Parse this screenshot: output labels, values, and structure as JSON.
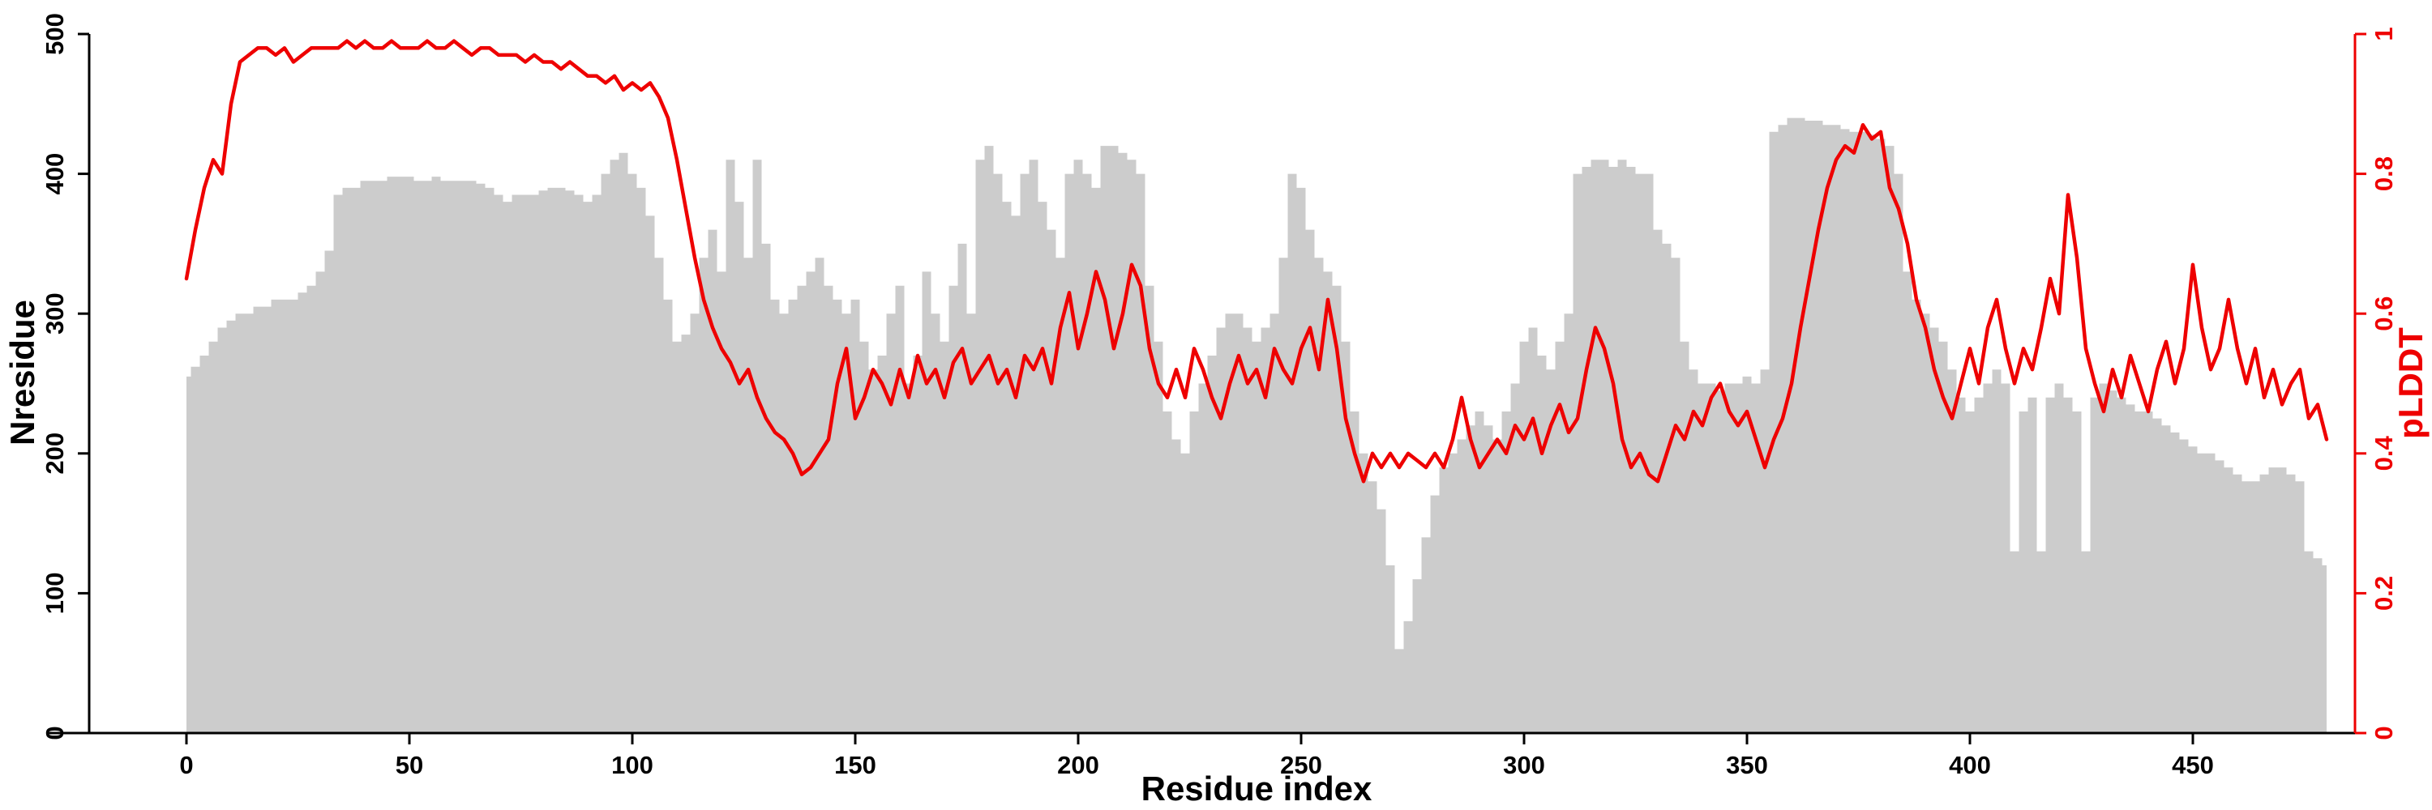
{
  "figure": {
    "background": "#ffffff"
  },
  "chart_data": {
    "type": "bar",
    "title": "",
    "xlabel": "Residue index",
    "ylabel": "Nresidue",
    "y2label": "pLDDT",
    "x_start": 0,
    "x_step": 2,
    "xlim": [
      0,
      480
    ],
    "ylim": [
      0,
      500
    ],
    "y2lim": [
      0,
      1
    ],
    "x_ticks": [
      0,
      50,
      100,
      150,
      200,
      250,
      300,
      350,
      400,
      450
    ],
    "y_ticks": [
      0,
      100,
      200,
      300,
      400,
      500
    ],
    "y2_ticks": [
      0,
      0.2,
      0.4,
      0.6,
      0.8,
      1
    ],
    "y2_tick_labels": [
      "0",
      "0.2",
      "0.4",
      "0.6",
      "0.8",
      "1"
    ],
    "grid": false,
    "legend": "none",
    "colors": {
      "bar": "#cccccc",
      "line": "#ee0000",
      "axis_left": "#000000",
      "axis_right": "#ee0000"
    },
    "series": [
      {
        "name": "Nresidue",
        "type": "bar",
        "axis": "left",
        "color": "#cccccc",
        "values": [
          255,
          262,
          270,
          280,
          290,
          295,
          300,
          300,
          305,
          305,
          310,
          310,
          310,
          315,
          320,
          330,
          345,
          385,
          390,
          390,
          395,
          395,
          395,
          398,
          398,
          398,
          395,
          395,
          398,
          395,
          395,
          395,
          395,
          393,
          390,
          385,
          380,
          385,
          385,
          385,
          388,
          390,
          390,
          388,
          385,
          380,
          385,
          400,
          410,
          415,
          400,
          390,
          370,
          340,
          310,
          280,
          285,
          300,
          340,
          360,
          330,
          410,
          380,
          340,
          410,
          350,
          310,
          300,
          310,
          320,
          330,
          340,
          320,
          310,
          300,
          310,
          280,
          260,
          270,
          300,
          320,
          250,
          270,
          330,
          300,
          280,
          320,
          350,
          300,
          410,
          420,
          400,
          380,
          370,
          400,
          410,
          380,
          360,
          340,
          400,
          410,
          400,
          390,
          420,
          420,
          415,
          410,
          400,
          320,
          280,
          230,
          210,
          200,
          230,
          250,
          270,
          290,
          300,
          300,
          290,
          280,
          290,
          300,
          340,
          400,
          390,
          360,
          340,
          330,
          320,
          280,
          230,
          200,
          180,
          160,
          120,
          60,
          80,
          110,
          140,
          170,
          190,
          200,
          210,
          220,
          230,
          220,
          210,
          230,
          250,
          280,
          290,
          270,
          260,
          280,
          300,
          400,
          405,
          410,
          410,
          405,
          410,
          405,
          400,
          400,
          360,
          350,
          340,
          280,
          260,
          250,
          250,
          245,
          250,
          250,
          255,
          250,
          260,
          430,
          435,
          440,
          440,
          438,
          438,
          435,
          435,
          432,
          430,
          430,
          428,
          425,
          420,
          400,
          330,
          310,
          300,
          290,
          280,
          260,
          240,
          230,
          240,
          250,
          260,
          250,
          130,
          230,
          240,
          130,
          240,
          250,
          240,
          230,
          130,
          240,
          250,
          245,
          240,
          235,
          230,
          230,
          225,
          220,
          215,
          210,
          205,
          200,
          200,
          195,
          190,
          185,
          180,
          180,
          185,
          190,
          190,
          185,
          180,
          130,
          125,
          120
        ]
      },
      {
        "name": "pLDDT",
        "type": "line",
        "axis": "right",
        "color": "#ee0000",
        "values": [
          0.65,
          0.72,
          0.78,
          0.82,
          0.8,
          0.9,
          0.96,
          0.97,
          0.98,
          0.98,
          0.97,
          0.98,
          0.96,
          0.97,
          0.98,
          0.98,
          0.98,
          0.98,
          0.99,
          0.98,
          0.99,
          0.98,
          0.98,
          0.99,
          0.98,
          0.98,
          0.98,
          0.99,
          0.98,
          0.98,
          0.99,
          0.98,
          0.97,
          0.98,
          0.98,
          0.97,
          0.97,
          0.97,
          0.96,
          0.97,
          0.96,
          0.96,
          0.95,
          0.96,
          0.95,
          0.94,
          0.94,
          0.93,
          0.94,
          0.92,
          0.93,
          0.92,
          0.93,
          0.91,
          0.88,
          0.82,
          0.75,
          0.68,
          0.62,
          0.58,
          0.55,
          0.53,
          0.5,
          0.52,
          0.48,
          0.45,
          0.43,
          0.42,
          0.4,
          0.37,
          0.38,
          0.4,
          0.42,
          0.5,
          0.55,
          0.45,
          0.48,
          0.52,
          0.5,
          0.47,
          0.52,
          0.48,
          0.54,
          0.5,
          0.52,
          0.48,
          0.53,
          0.55,
          0.5,
          0.52,
          0.54,
          0.5,
          0.52,
          0.48,
          0.54,
          0.52,
          0.55,
          0.5,
          0.58,
          0.63,
          0.55,
          0.6,
          0.66,
          0.62,
          0.55,
          0.6,
          0.67,
          0.64,
          0.55,
          0.5,
          0.48,
          0.52,
          0.48,
          0.55,
          0.52,
          0.48,
          0.45,
          0.5,
          0.54,
          0.5,
          0.52,
          0.48,
          0.55,
          0.52,
          0.5,
          0.55,
          0.58,
          0.52,
          0.62,
          0.55,
          0.45,
          0.4,
          0.36,
          0.4,
          0.38,
          0.4,
          0.38,
          0.4,
          0.39,
          0.38,
          0.4,
          0.38,
          0.42,
          0.48,
          0.42,
          0.38,
          0.4,
          0.42,
          0.4,
          0.44,
          0.42,
          0.45,
          0.4,
          0.44,
          0.47,
          0.43,
          0.45,
          0.52,
          0.58,
          0.55,
          0.5,
          0.42,
          0.38,
          0.4,
          0.37,
          0.36,
          0.4,
          0.44,
          0.42,
          0.46,
          0.44,
          0.48,
          0.5,
          0.46,
          0.44,
          0.46,
          0.42,
          0.38,
          0.42,
          0.45,
          0.5,
          0.58,
          0.65,
          0.72,
          0.78,
          0.82,
          0.84,
          0.83,
          0.87,
          0.85,
          0.86,
          0.78,
          0.75,
          0.7,
          0.62,
          0.58,
          0.52,
          0.48,
          0.45,
          0.5,
          0.55,
          0.5,
          0.58,
          0.62,
          0.55,
          0.5,
          0.55,
          0.52,
          0.58,
          0.65,
          0.6,
          0.77,
          0.68,
          0.55,
          0.5,
          0.46,
          0.52,
          0.48,
          0.54,
          0.5,
          0.46,
          0.52,
          0.56,
          0.5,
          0.55,
          0.67,
          0.58,
          0.52,
          0.55,
          0.62,
          0.55,
          0.5,
          0.55,
          0.48,
          0.52,
          0.47,
          0.5,
          0.52,
          0.45,
          0.47,
          0.42
        ]
      }
    ]
  }
}
